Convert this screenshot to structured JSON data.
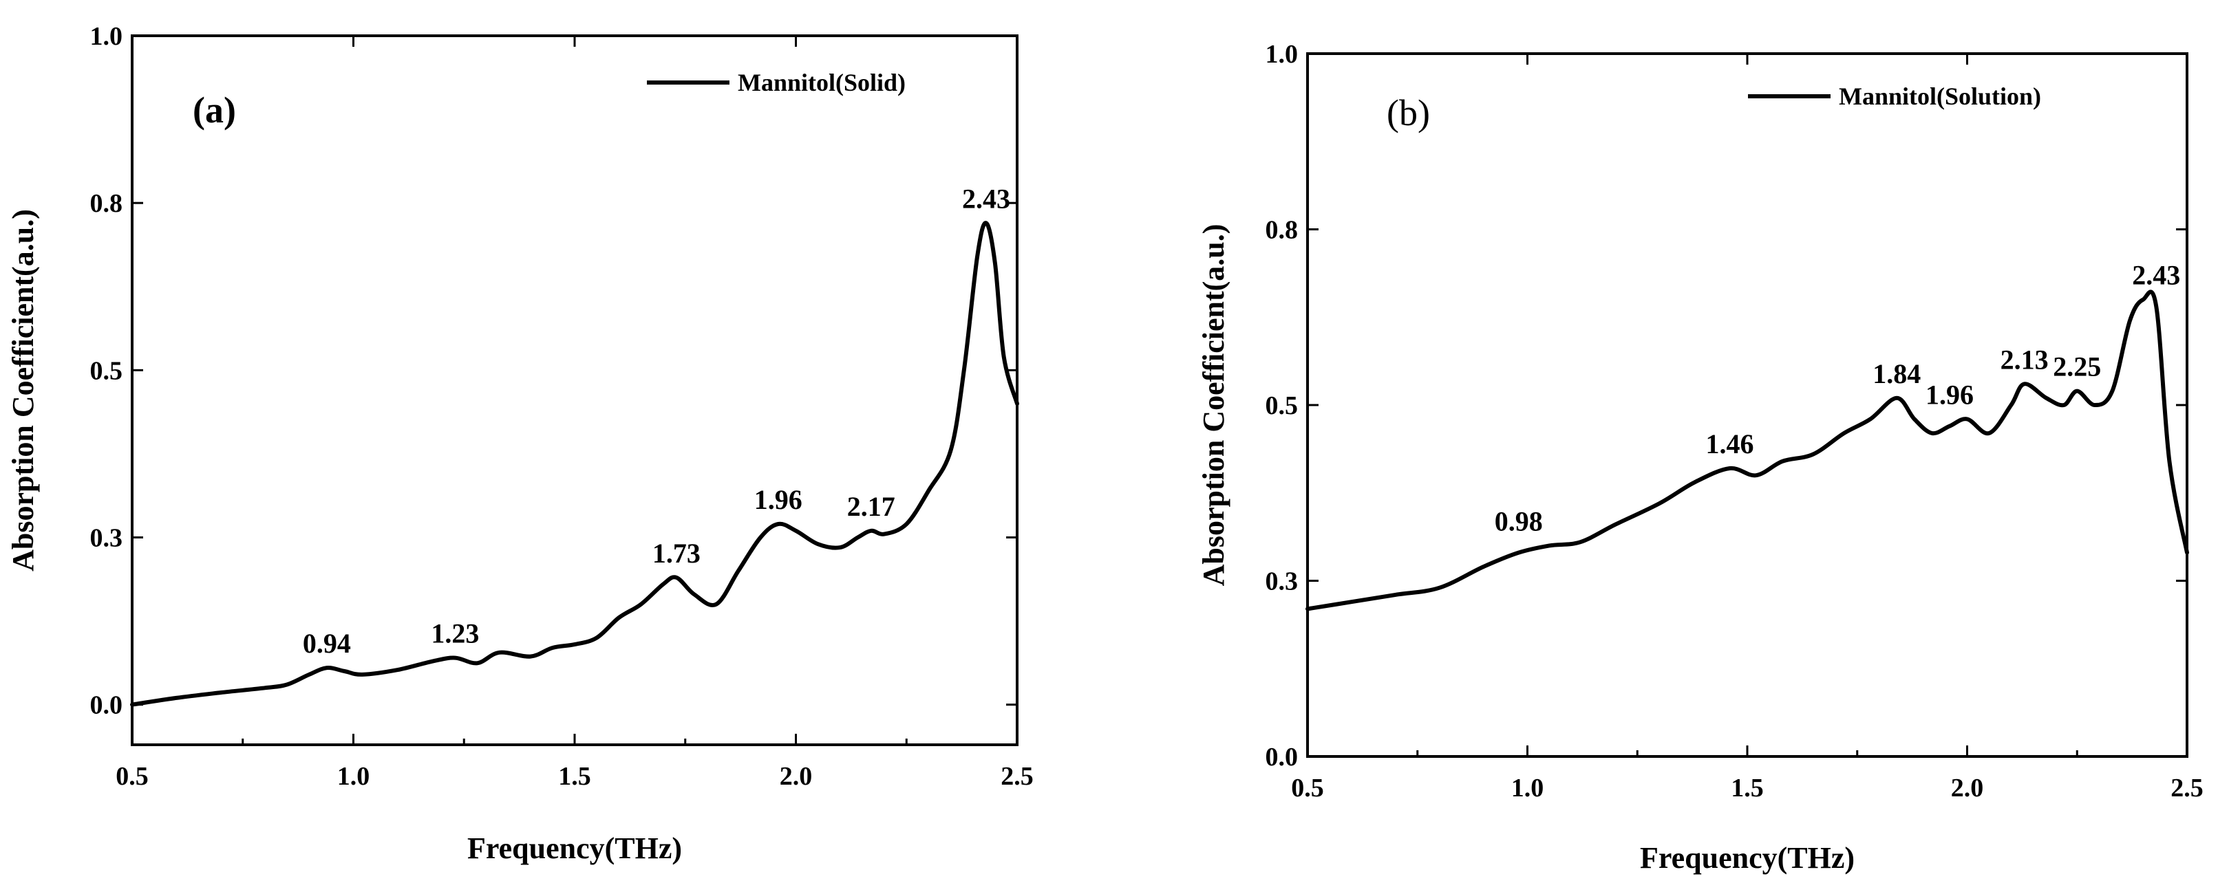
{
  "chart_data": [
    {
      "type": "line",
      "panel_label": "(a)",
      "xlabel": "Frequency(THz)",
      "ylabel": "Absorption Coefficient(a.u.)",
      "xlim": [
        0.5,
        2.5
      ],
      "ylim": [
        -0.06,
        1.0
      ],
      "xticks": [
        "0.5",
        "1.0",
        "1.5",
        "2.0",
        "2.5"
      ],
      "xtick_values": [
        0.5,
        1.0,
        1.5,
        2.0,
        2.5
      ],
      "yticks": [
        "0.0",
        "0.3",
        "0.5",
        "0.8",
        "1.0"
      ],
      "ytick_values": [
        0.0,
        0.25,
        0.5,
        0.75,
        1.0
      ],
      "legend": "Mannitol(Solid)",
      "legend_position": "top-right",
      "series": [
        {
          "name": "Mannitol(Solid)",
          "x": [
            0.5,
            0.6,
            0.7,
            0.8,
            0.85,
            0.9,
            0.94,
            0.98,
            1.02,
            1.1,
            1.18,
            1.23,
            1.28,
            1.33,
            1.4,
            1.45,
            1.5,
            1.55,
            1.6,
            1.65,
            1.7,
            1.73,
            1.77,
            1.82,
            1.87,
            1.92,
            1.96,
            2.0,
            2.05,
            2.1,
            2.14,
            2.17,
            2.2,
            2.25,
            2.3,
            2.35,
            2.38,
            2.41,
            2.43,
            2.45,
            2.47,
            2.5
          ],
          "y": [
            0.0,
            0.01,
            0.018,
            0.025,
            0.03,
            0.045,
            0.055,
            0.05,
            0.045,
            0.052,
            0.065,
            0.07,
            0.062,
            0.078,
            0.072,
            0.085,
            0.09,
            0.1,
            0.13,
            0.15,
            0.18,
            0.19,
            0.165,
            0.15,
            0.2,
            0.25,
            0.27,
            0.26,
            0.24,
            0.235,
            0.25,
            0.26,
            0.255,
            0.27,
            0.32,
            0.38,
            0.5,
            0.67,
            0.72,
            0.66,
            0.52,
            0.45
          ]
        }
      ],
      "annotations": [
        {
          "text": "0.94",
          "x": 0.94,
          "y": 0.055
        },
        {
          "text": "1.23",
          "x": 1.23,
          "y": 0.07
        },
        {
          "text": "1.73",
          "x": 1.73,
          "y": 0.19
        },
        {
          "text": "1.96",
          "x": 1.96,
          "y": 0.27
        },
        {
          "text": "2.17",
          "x": 2.17,
          "y": 0.26
        },
        {
          "text": "2.43",
          "x": 2.43,
          "y": 0.72
        }
      ]
    },
    {
      "type": "line",
      "panel_label": "(b)",
      "xlabel": "Frequency(THz)",
      "ylabel": "Absorption Coefficient(a.u.)",
      "xlim": [
        0.5,
        2.5
      ],
      "ylim": [
        0.0,
        1.0
      ],
      "xticks": [
        "0.5",
        "1.0",
        "1.5",
        "2.0",
        "2.5"
      ],
      "xtick_values": [
        0.5,
        1.0,
        1.5,
        2.0,
        2.5
      ],
      "yticks": [
        "0.0",
        "0.3",
        "0.5",
        "0.8",
        "1.0"
      ],
      "ytick_values": [
        0.0,
        0.25,
        0.5,
        0.75,
        1.0
      ],
      "legend": "Mannitol(Solution)",
      "legend_position": "top-right",
      "series": [
        {
          "name": "Mannitol(Solution)",
          "x": [
            0.5,
            0.6,
            0.7,
            0.8,
            0.9,
            0.98,
            1.05,
            1.12,
            1.2,
            1.3,
            1.38,
            1.46,
            1.52,
            1.58,
            1.65,
            1.72,
            1.78,
            1.84,
            1.88,
            1.92,
            1.96,
            2.0,
            2.05,
            2.1,
            2.13,
            2.18,
            2.22,
            2.25,
            2.29,
            2.33,
            2.37,
            2.4,
            2.43,
            2.46,
            2.5
          ],
          "y": [
            0.21,
            0.22,
            0.23,
            0.24,
            0.27,
            0.29,
            0.3,
            0.305,
            0.33,
            0.36,
            0.39,
            0.41,
            0.4,
            0.42,
            0.43,
            0.46,
            0.48,
            0.51,
            0.48,
            0.46,
            0.47,
            0.48,
            0.46,
            0.5,
            0.53,
            0.51,
            0.5,
            0.52,
            0.5,
            0.52,
            0.62,
            0.65,
            0.64,
            0.42,
            0.29
          ]
        }
      ],
      "annotations": [
        {
          "text": "0.98",
          "x": 0.98,
          "y": 0.3
        },
        {
          "text": "1.46",
          "x": 1.46,
          "y": 0.41
        },
        {
          "text": "1.84",
          "x": 1.84,
          "y": 0.51
        },
        {
          "text": "1.96",
          "x": 1.96,
          "y": 0.48
        },
        {
          "text": "2.13",
          "x": 2.13,
          "y": 0.53
        },
        {
          "text": "2.25",
          "x": 2.25,
          "y": 0.52
        },
        {
          "text": "2.43",
          "x": 2.43,
          "y": 0.65
        }
      ]
    }
  ]
}
